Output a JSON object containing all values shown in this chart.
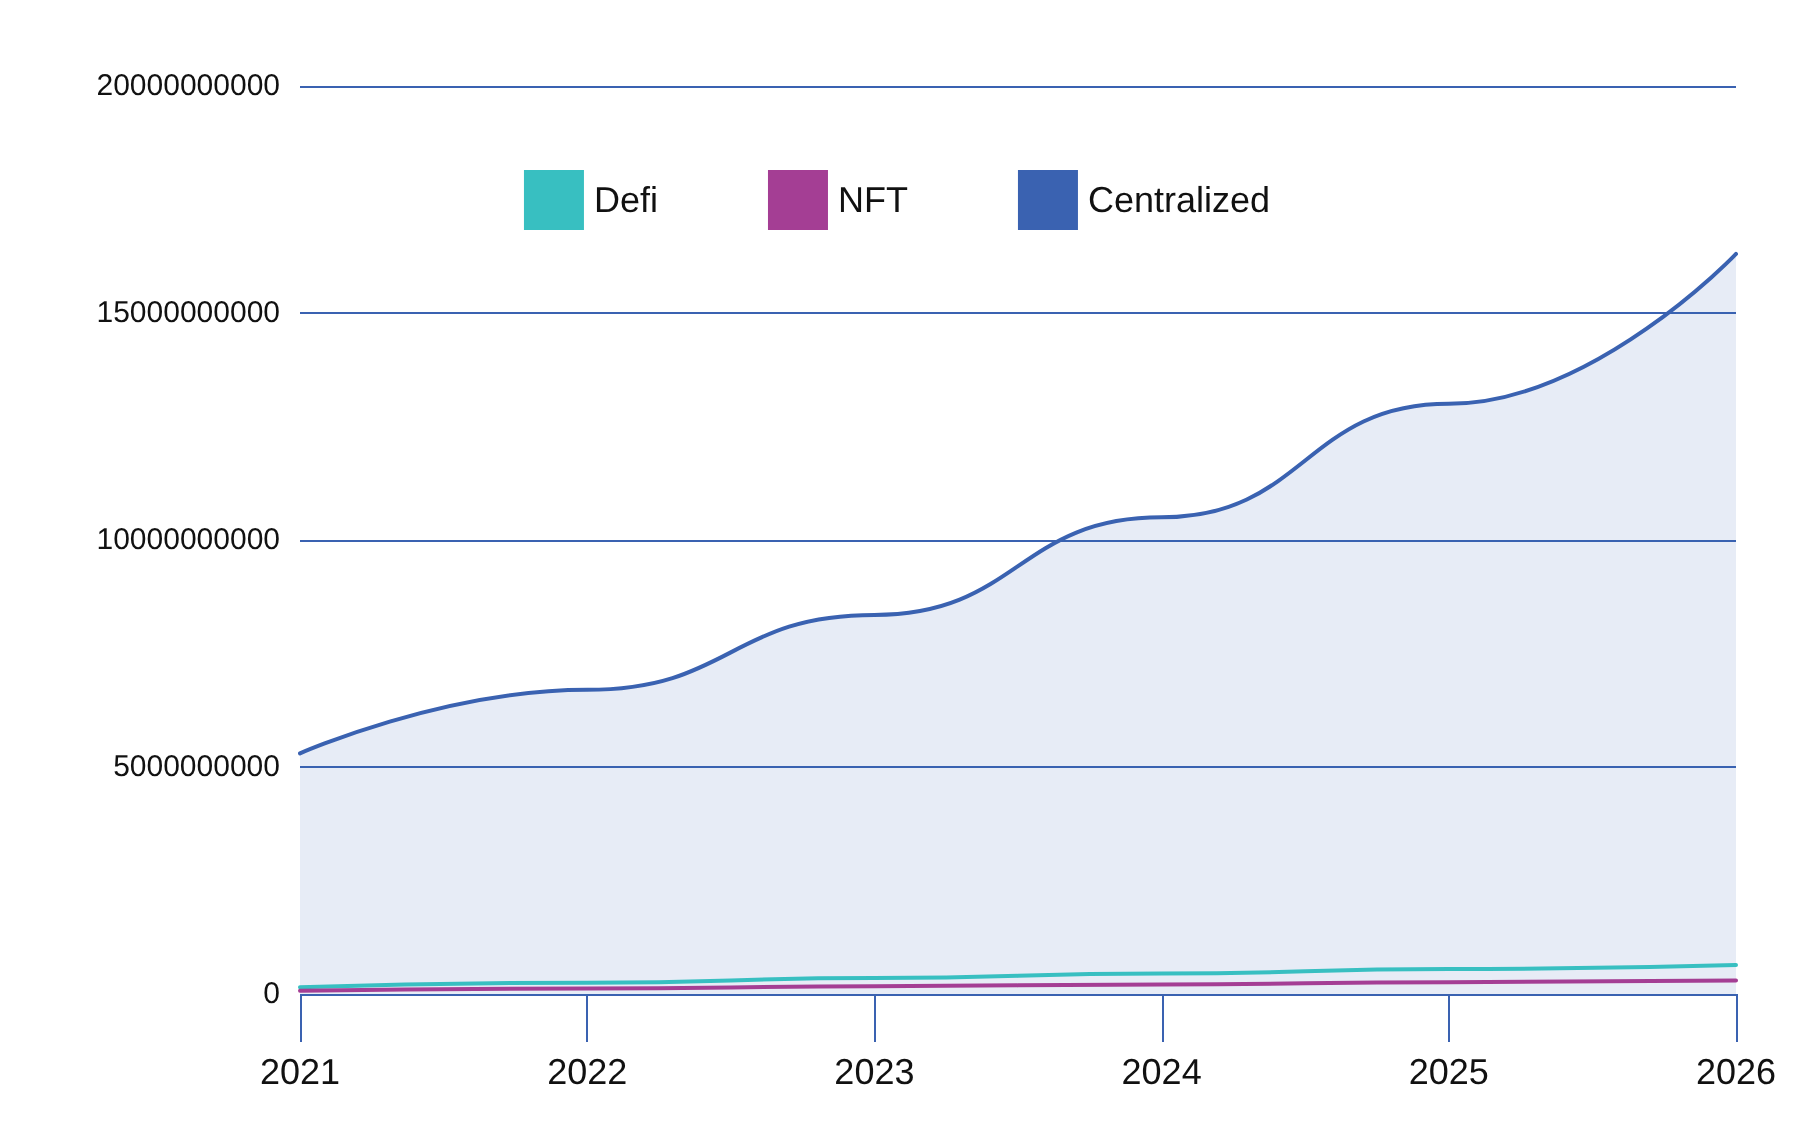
{
  "chart_data": {
    "type": "line",
    "categories": [
      "2021",
      "2022",
      "2023",
      "2024",
      "2025",
      "2026"
    ],
    "series": [
      {
        "name": "Defi",
        "color": "#38bfc1",
        "values": [
          150000000,
          250000000,
          350000000,
          450000000,
          550000000,
          640000000
        ]
      },
      {
        "name": "NFT",
        "color": "#a43e94",
        "values": [
          70000000,
          120000000,
          170000000,
          210000000,
          260000000,
          300000000
        ]
      },
      {
        "name": "Centralized",
        "type": "area",
        "color": "#3a62b1",
        "values": [
          5300000000,
          6700000000,
          8350000000,
          10500000000,
          13000000000,
          16300000000
        ]
      }
    ],
    "ylim": [
      0,
      20000000000
    ],
    "yticks": [
      0,
      5000000000,
      10000000000,
      15000000000,
      20000000000
    ],
    "grid": "y",
    "legend": "top",
    "marker": "none",
    "line_style": "solid"
  }
}
